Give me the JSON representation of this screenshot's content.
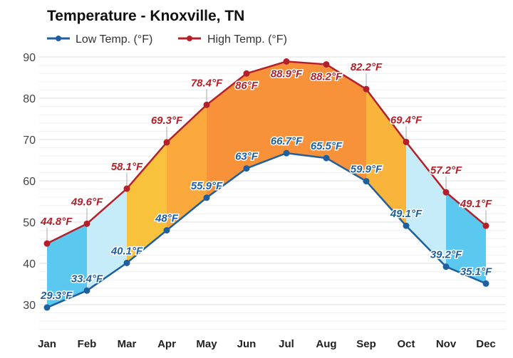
{
  "chart_data": {
    "type": "line",
    "title": "Temperature - Knoxville, TN",
    "categories": [
      "Jan",
      "Feb",
      "Mar",
      "Apr",
      "May",
      "Jun",
      "Jul",
      "Aug",
      "Sep",
      "Oct",
      "Nov",
      "Dec"
    ],
    "series": [
      {
        "name": "Low Temp. (°F)",
        "color": "#1f5fa0",
        "values": [
          29.3,
          33.4,
          40.1,
          48,
          55.9,
          63,
          66.7,
          65.5,
          59.9,
          49.1,
          39.2,
          35.1
        ],
        "labels": [
          "29.3°F",
          "33.4°F",
          "40.1°F",
          "48°F",
          "55.9°F",
          "63°F",
          "66.7°F",
          "65.5°F",
          "59.9°F",
          "49.1°F",
          "39.2°F",
          "35.1°F"
        ]
      },
      {
        "name": "High Temp. (°F)",
        "color": "#b3202a",
        "values": [
          44.8,
          49.6,
          58.1,
          69.3,
          78.4,
          86,
          88.9,
          88.2,
          82.2,
          69.4,
          57.2,
          49.1
        ],
        "labels": [
          "44.8°F",
          "49.6°F",
          "58.1°F",
          "69.3°F",
          "78.4°F",
          "86°F",
          "88.9°F",
          "88.2°F",
          "82.2°F",
          "69.4°F",
          "57.2°F",
          "49.1°F"
        ]
      }
    ],
    "band_colors": [
      "#5bc8f0",
      "#c6ecfa",
      "#f9c23c",
      "#fba93c",
      "#f8923a",
      "#f8923a",
      "#f8923a",
      "#f8923a",
      "#f9b43c",
      "#c6ecfa",
      "#5bc8f0"
    ],
    "yticks": [
      "30",
      "40",
      "50",
      "60",
      "70",
      "80",
      "90"
    ],
    "ylim": [
      23.6,
      90
    ],
    "grid": true,
    "legend": "top-left"
  }
}
